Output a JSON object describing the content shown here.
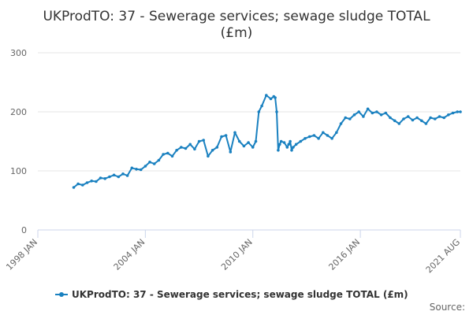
{
  "chart_data": {
    "type": "line",
    "title": "UKProdTO: 37 - Sewerage services; sewage sludge TOTAL (£m)",
    "title_lines": [
      "UKProdTO: 37 - Sewerage services; sewage sludge TOTAL",
      "(£m)"
    ],
    "xlabel": "",
    "ylabel": "",
    "ylim": [
      0,
      300
    ],
    "yticks": [
      "0",
      "100",
      "200",
      "300"
    ],
    "xtick_labels": [
      "1998 JAN",
      "2004 JAN",
      "2010 JAN",
      "2016 JAN",
      "2021 AUG"
    ],
    "xtick_positions": [
      0,
      72,
      144,
      216,
      283
    ],
    "x_range": [
      0,
      283
    ],
    "grid": true,
    "legend_position": "bottom",
    "credits": "Source:",
    "series": [
      {
        "name": "UKProdTO: 37 - Sewerage services; sewage sludge TOTAL (£m)",
        "color": "#1a81c0",
        "x": [
          24,
          27,
          30,
          33,
          36,
          39,
          42,
          45,
          48,
          51,
          54,
          57,
          60,
          63,
          66,
          69,
          72,
          75,
          78,
          81,
          84,
          87,
          90,
          93,
          96,
          99,
          102,
          105,
          108,
          111,
          114,
          117,
          120,
          123,
          126,
          129,
          132,
          135,
          138,
          141,
          144,
          146,
          148,
          150,
          153,
          156,
          158,
          159,
          160,
          161,
          162,
          163,
          165,
          167,
          168,
          169,
          170,
          171,
          173,
          176,
          179,
          182,
          185,
          188,
          191,
          194,
          197,
          200,
          203,
          206,
          209,
          212,
          215,
          218,
          221,
          224,
          227,
          230,
          233,
          236,
          239,
          242,
          245,
          248,
          251,
          254,
          257,
          260,
          263,
          266,
          269,
          272,
          275,
          278,
          281,
          283
        ],
        "values": [
          72,
          78,
          76,
          80,
          83,
          82,
          88,
          87,
          90,
          93,
          90,
          95,
          92,
          105,
          103,
          102,
          108,
          115,
          112,
          118,
          128,
          130,
          125,
          135,
          140,
          138,
          145,
          137,
          150,
          152,
          125,
          135,
          140,
          158,
          160,
          132,
          165,
          150,
          142,
          148,
          140,
          150,
          200,
          210,
          228,
          222,
          226,
          224,
          200,
          135,
          145,
          150,
          148,
          140,
          145,
          150,
          135,
          140,
          145,
          150,
          155,
          158,
          160,
          155,
          165,
          160,
          155,
          165,
          180,
          190,
          188,
          195,
          200,
          192,
          205,
          198,
          200,
          195,
          198,
          190,
          185,
          180,
          188,
          192,
          186,
          190,
          185,
          180,
          190,
          188,
          192,
          190,
          195,
          198,
          200,
          200
        ]
      }
    ]
  }
}
